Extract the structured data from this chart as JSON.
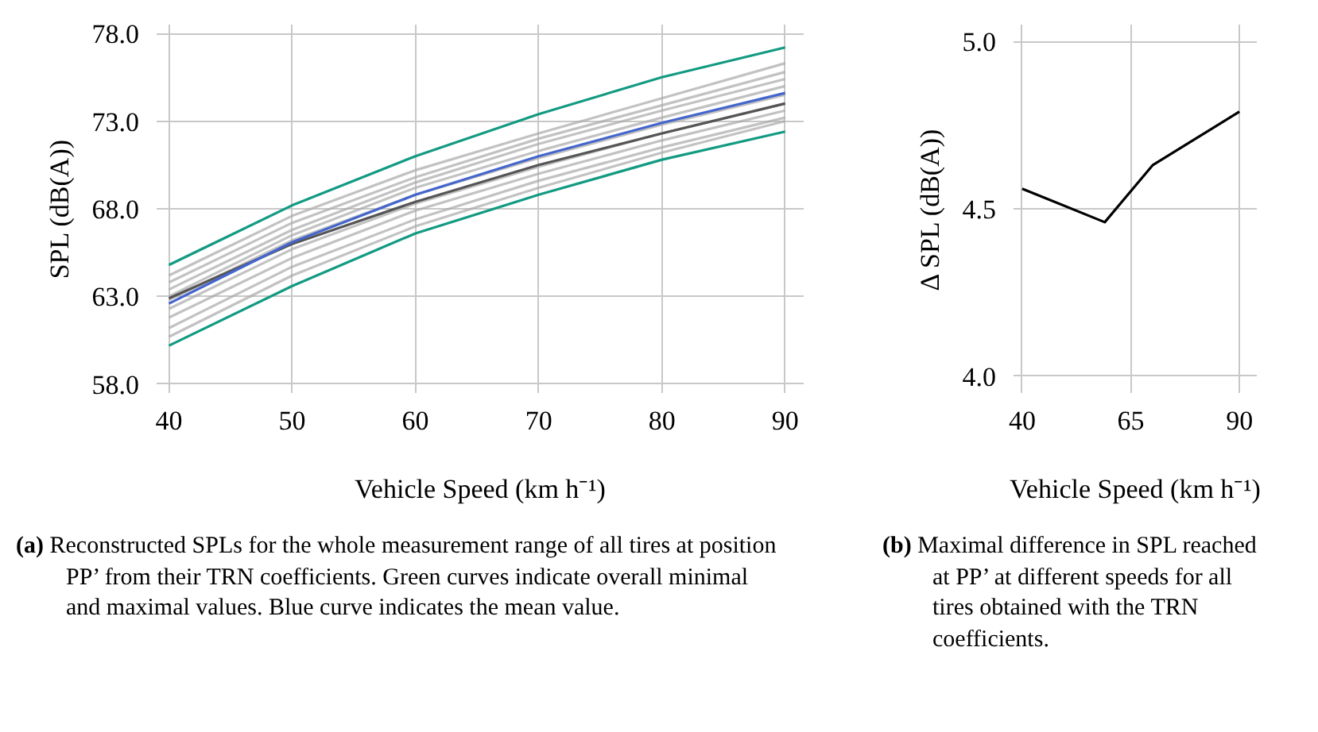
{
  "chart_data": [
    {
      "type": "line",
      "xlabel": "Vehicle Speed (km h⁻¹)",
      "ylabel": "SPL (dB(A))",
      "x": [
        40,
        50,
        60,
        70,
        80,
        90
      ],
      "xlim": [
        39,
        91.5
      ],
      "ylim": [
        57.5,
        78.5
      ],
      "xticks": [
        40,
        50,
        60,
        70,
        80,
        90
      ],
      "yticks": [
        {
          "value": 58,
          "label": "58.0"
        },
        {
          "value": 63,
          "label": "63.0"
        },
        {
          "value": 68,
          "label": "68.0"
        },
        {
          "value": 73,
          "label": "73.0"
        },
        {
          "value": 78,
          "label": "78.0"
        }
      ],
      "grid": true,
      "series": [
        {
          "color": "#a8a8a8",
          "values": [
            64.2,
            67.6,
            70.2,
            72.3,
            74.3,
            76.3
          ]
        },
        {
          "color": "#a8a8a8",
          "values": [
            63.8,
            67.2,
            69.8,
            72.0,
            73.9,
            75.8
          ]
        },
        {
          "color": "#a8a8a8",
          "values": [
            63.4,
            66.8,
            69.5,
            71.7,
            73.6,
            75.4
          ]
        },
        {
          "color": "#a8a8a8",
          "values": [
            63.0,
            66.5,
            69.2,
            71.3,
            73.2,
            75.0
          ]
        },
        {
          "color": "#a8a8a8",
          "values": [
            62.8,
            66.2,
            68.8,
            70.9,
            72.8,
            74.5
          ]
        },
        {
          "color": "#a8a8a8",
          "values": [
            62.3,
            65.7,
            68.3,
            70.4,
            72.3,
            74.0
          ]
        },
        {
          "color": "#a8a8a8",
          "values": [
            61.8,
            65.2,
            67.9,
            70.0,
            71.9,
            73.6
          ]
        },
        {
          "color": "#a8a8a8",
          "values": [
            61.2,
            64.7,
            67.4,
            69.6,
            71.5,
            73.2
          ]
        },
        {
          "color": "#a8a8a8",
          "values": [
            60.7,
            64.2,
            67.0,
            69.2,
            71.2,
            73.0
          ]
        },
        {
          "color": "#555555",
          "values": [
            62.9,
            66.0,
            68.4,
            70.5,
            72.3,
            74.0
          ]
        },
        {
          "color": "#129a82",
          "values": [
            64.8,
            68.2,
            71.0,
            73.4,
            75.5,
            77.2
          ]
        },
        {
          "color": "#129a82",
          "values": [
            60.2,
            63.6,
            66.6,
            68.8,
            70.8,
            72.4
          ]
        },
        {
          "color": "#4466cc",
          "values": [
            62.6,
            66.1,
            68.8,
            71.0,
            72.9,
            74.6
          ]
        }
      ],
      "annotations": [
        "(a) Reconstructed SPLs for the whole measurement range of all tires at position PP’ from their TRN coefficients. Green curves indicate overall minimal and maximal values. Blue curve indicates the mean value."
      ]
    },
    {
      "type": "line",
      "xlabel": "Vehicle Speed (km h⁻¹)",
      "ylabel": "Δ SPL (dB(A))",
      "x": [
        40,
        59,
        70,
        80,
        90
      ],
      "xlim": [
        38,
        94
      ],
      "ylim": [
        3.95,
        5.05
      ],
      "xticks": [
        40,
        65,
        90
      ],
      "yticks": [
        {
          "value": 4,
          "label": "4.0"
        },
        {
          "value": 4.5,
          "label": "4.5"
        },
        {
          "value": 5,
          "label": "5.0"
        }
      ],
      "grid": true,
      "series": [
        {
          "color": "#000000",
          "values": [
            4.56,
            4.46,
            4.63,
            4.71,
            4.79
          ]
        }
      ],
      "annotations": [
        "(b) Maximal difference in SPL reached at PP’ at different speeds for all tires obtained with the TRN coefficients."
      ]
    }
  ]
}
